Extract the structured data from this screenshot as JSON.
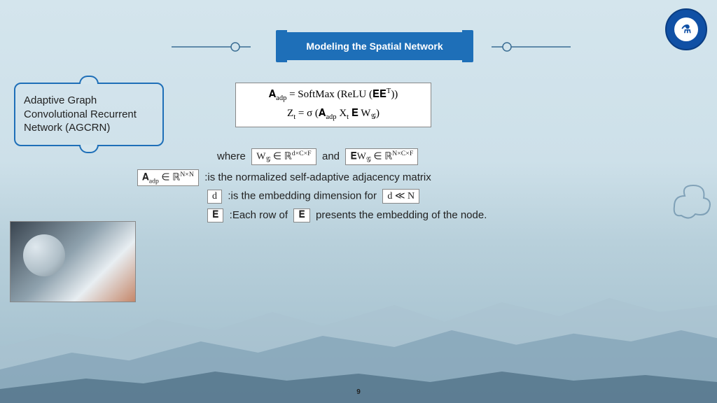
{
  "title": "Modeling the Spatial Network",
  "callout": "Adaptive Graph Convolutional Recurrent Network (AGCRN)",
  "equations": {
    "main_line1": "𝐀<sub>adp</sub> = SoftMax (ReLU (𝐄𝐄<sup>T</sup>))",
    "main_line2": "Z<sub>t</sub> = σ (𝐀<sub>adp</sub> X<sub>t</sub> 𝐄 W<sub>𝒢</sub>)",
    "wg": "W<sub>𝒢</sub> ∈ ℝ<sup>d×C×F</sup>",
    "ewg": "𝐄W<sub>𝒢</sub> ∈ ℝ<sup>N×C×F</sup>",
    "aadp": "𝐀<sub>adp</sub> ∈ ℝ<sup>N×N</sup>",
    "d": "d",
    "dlln": "d ≪ N",
    "E": "𝐄"
  },
  "text": {
    "where": "where",
    "and": "and",
    "adj_desc": ":is the normalized self-adaptive adjacency matrix",
    "d_desc": ":is the embedding dimension for",
    "E_desc_a": ":Each row of",
    "E_desc_b": "presents the embedding of the node."
  },
  "page_number": "9",
  "colors": {
    "banner": "#1e6fb8",
    "ornament": "#3a6d93",
    "logo_bg": "#1050a5"
  }
}
